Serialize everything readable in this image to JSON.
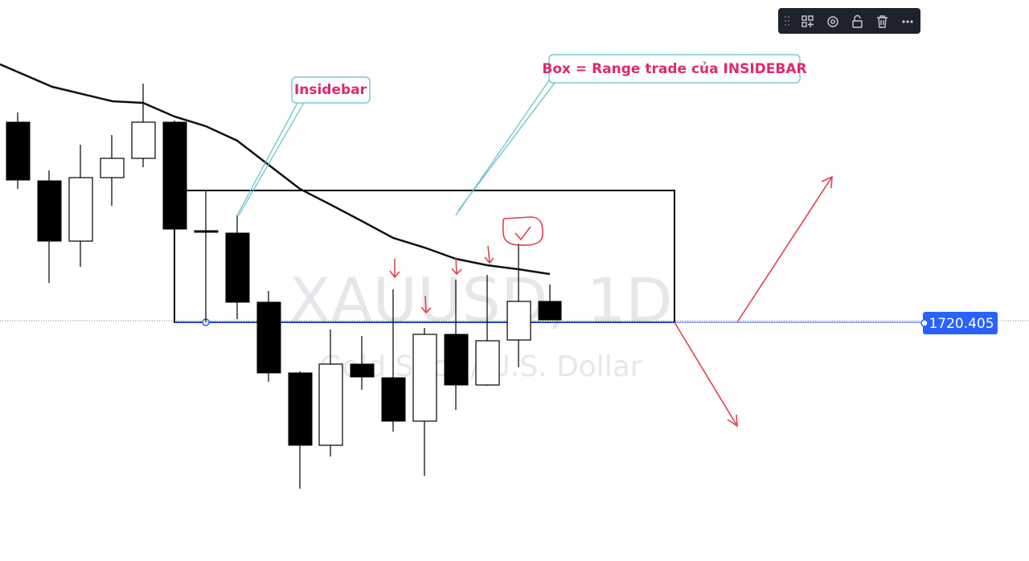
{
  "watermark": {
    "symbol": "XAUUSD, 1D",
    "description": "Gold Spot / U.S. Dollar"
  },
  "annotations": {
    "insidebar": "Insidebar",
    "box": "Box = Range trade của INSIDEBAR"
  },
  "price_label": "1720.405"
}
